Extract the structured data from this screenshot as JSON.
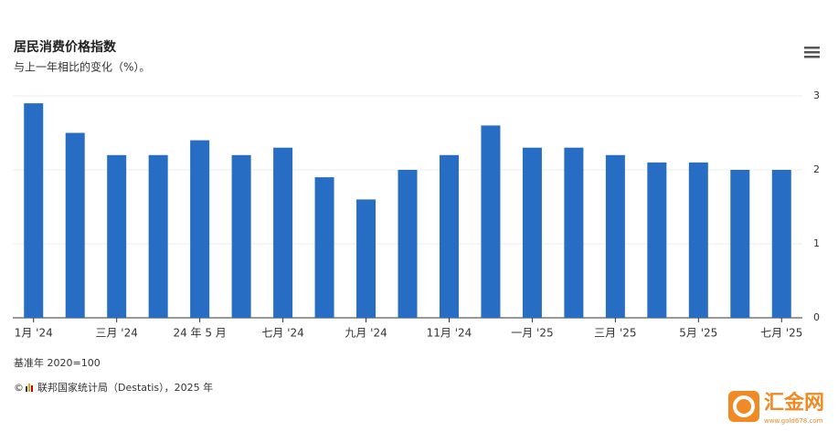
{
  "chart_data": {
    "type": "bar",
    "title": "居民消费价格指数",
    "subtitle": "与上一年相比的变化（%）。",
    "categories": [
      "1月 '24",
      null,
      "三月 '24",
      null,
      "24 年 5 月",
      null,
      "七月 '24",
      null,
      "九月 '24",
      null,
      "11月 '24",
      null,
      "一月 '25",
      null,
      "三月 '25",
      null,
      "5月 '25",
      null,
      "七月 '25"
    ],
    "values": [
      2.9,
      2.5,
      2.2,
      2.2,
      2.4,
      2.2,
      2.3,
      1.9,
      1.6,
      2.0,
      2.2,
      2.6,
      2.3,
      2.3,
      2.2,
      2.1,
      2.1,
      2.0,
      2.0
    ],
    "color": "#276dc3",
    "ylim": [
      0,
      3
    ],
    "yticks": [
      0,
      1,
      2,
      3
    ],
    "grid": true,
    "note": "基准年 2020=100",
    "source": "联邦国家统计局（Destatis），2025 年",
    "watermark": "汇金网",
    "watermark_url": "www.gold678.com"
  }
}
